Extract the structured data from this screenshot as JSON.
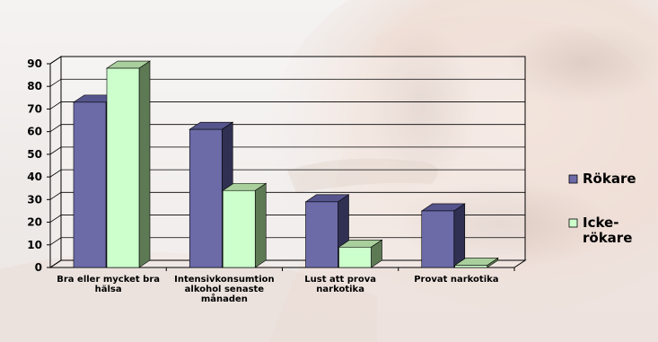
{
  "colors": {
    "rokare_front": "#6c6ba8",
    "rokare_top": "#55548c",
    "rokare_side": "#303052",
    "ickerokare_front": "#ccffcc",
    "ickerokare_top": "#a9cf9d",
    "ickerokare_side": "#5e7a55",
    "grid": "#000000"
  },
  "chart_data": {
    "type": "bar",
    "style": "3d-clustered-column",
    "categories": [
      [
        "Bra eller mycket bra",
        "hälsa"
      ],
      [
        "Intensivkonsumtion",
        "alkohol senaste",
        "månaden"
      ],
      [
        "Lust att prova",
        "narkotika"
      ],
      [
        "Provat narkotika"
      ]
    ],
    "series": [
      {
        "name": "Rökare",
        "legend_lines": [
          "Rökare"
        ],
        "values": [
          73,
          61,
          29,
          25
        ]
      },
      {
        "name": "Icke-rökare",
        "legend_lines": [
          "Icke-",
          "rökare"
        ],
        "values": [
          88,
          34,
          9,
          1
        ]
      }
    ],
    "ylim": [
      0,
      90
    ],
    "yticks": [
      0,
      10,
      20,
      30,
      40,
      50,
      60,
      70,
      80,
      90
    ],
    "grid": true,
    "legend": "right"
  }
}
